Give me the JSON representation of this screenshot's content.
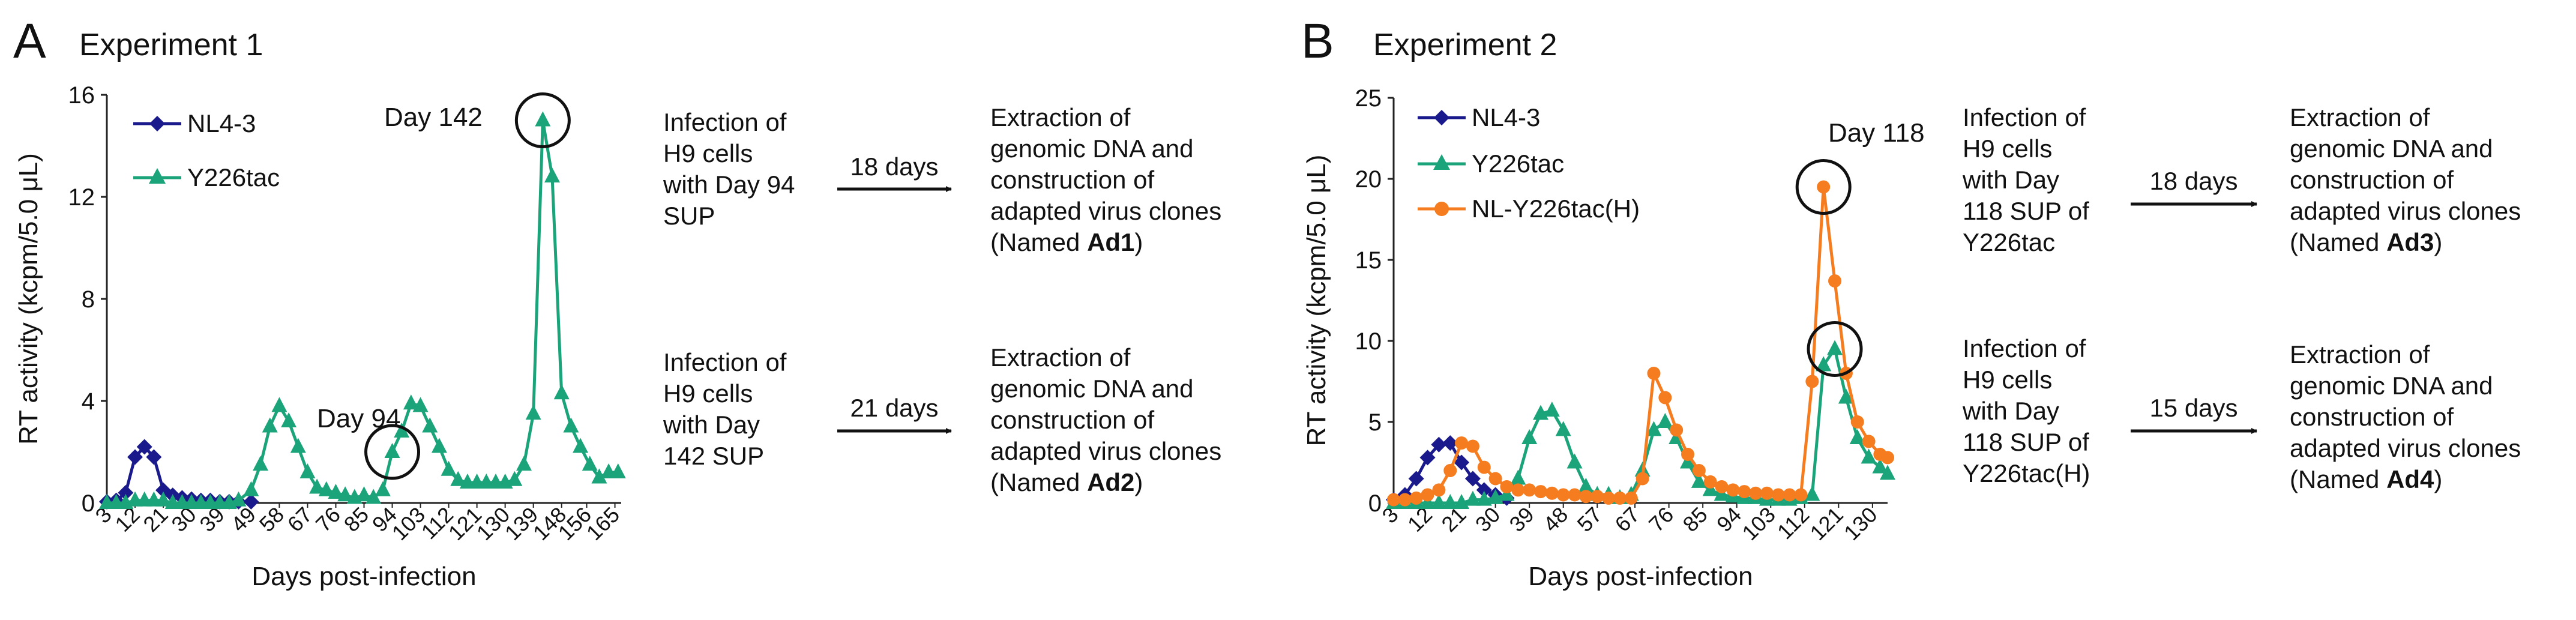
{
  "panels": [
    {
      "letter": "A",
      "title": "Experiment 1",
      "xlabel": "Days post-infection",
      "ylabel": "RT activity (kcpm/5.0 μL)",
      "ylim": [
        0,
        16
      ],
      "yticks": [
        "0",
        "4",
        "8",
        "12",
        "16"
      ],
      "xticklabels": [
        "3",
        "12",
        "21",
        "30",
        "39",
        "49",
        "58",
        "67",
        "76",
        "85",
        "94",
        "103",
        "112",
        "121",
        "130",
        "139",
        "148",
        "156",
        "165"
      ],
      "annotations": [
        {
          "text": "Day 94",
          "day": 94
        },
        {
          "text": "Day 142",
          "day": 142
        }
      ],
      "flow": [
        {
          "infection": [
            "Infection of",
            "H9 cells",
            "with Day 94",
            "SUP"
          ],
          "arrow_label": "18 days",
          "result": [
            "Extraction of",
            "genomic DNA and",
            "construction of",
            "adapted virus clones"
          ],
          "named_prefix": "(Named ",
          "named_clone": "Ad1",
          "named_suffix": ")"
        },
        {
          "infection": [
            "Infection of",
            "H9 cells",
            "with Day",
            "142 SUP"
          ],
          "arrow_label": "21 days",
          "result": [
            "Extraction of",
            "genomic DNA and",
            "construction of",
            "adapted virus clones"
          ],
          "named_prefix": "(Named ",
          "named_clone": "Ad2",
          "named_suffix": ")"
        }
      ]
    },
    {
      "letter": "B",
      "title": "Experiment 2",
      "xlabel": "Days post-infection",
      "ylabel": "RT activity (kcpm/5.0 μL)",
      "ylim": [
        0,
        25
      ],
      "yticks": [
        "0",
        "5",
        "10",
        "15",
        "20",
        "25"
      ],
      "xticklabels": [
        "3",
        "12",
        "21",
        "30",
        "39",
        "48",
        "57",
        "67",
        "76",
        "85",
        "94",
        "103",
        "112",
        "121",
        "130"
      ],
      "annotations": [
        {
          "text": "Day 118",
          "day": 118
        }
      ],
      "flow": [
        {
          "infection": [
            "Infection of",
            "H9 cells",
            "with Day",
            "118 SUP of",
            "Y226tac"
          ],
          "arrow_label": "18 days",
          "result": [
            "Extraction of",
            "genomic DNA and",
            "construction of",
            "adapted virus clones"
          ],
          "named_prefix": "(Named ",
          "named_clone": "Ad3",
          "named_suffix": ")"
        },
        {
          "infection": [
            "Infection of",
            "H9 cells",
            "with Day",
            "118 SUP of",
            "Y226tac(H)"
          ],
          "arrow_label": "15 days",
          "result": [
            "Extraction of",
            "genomic DNA and",
            "construction of",
            "adapted virus clones"
          ],
          "named_prefix": "(Named ",
          "named_clone": "Ad4",
          "named_suffix": ")"
        }
      ]
    }
  ],
  "colors": {
    "nl43": "#1a1a8c",
    "y226tac": "#1ba37a",
    "nly226tach": "#f57c1f",
    "axis": "#222222"
  },
  "chart_data": [
    {
      "type": "line",
      "title": "Experiment 1",
      "xlabel": "Days post-infection",
      "ylabel": "RT activity (kcpm/5.0 μL)",
      "xlim": [
        3,
        167
      ],
      "ylim": [
        0,
        16
      ],
      "legend_position": "top-left",
      "series": [
        {
          "name": "NL4-3",
          "key": "nl43",
          "marker": "diamond",
          "x": [
            3,
            6,
            9,
            12,
            15,
            18,
            21,
            24,
            27,
            30,
            33,
            36,
            39,
            42,
            45,
            49
          ],
          "y": [
            0.05,
            0.1,
            0.4,
            1.8,
            2.2,
            1.8,
            0.5,
            0.3,
            0.2,
            0.15,
            0.1,
            0.1,
            0.05,
            0.05,
            0.05,
            0.05
          ]
        },
        {
          "name": "Y226tac",
          "key": "y226tac",
          "marker": "triangle",
          "x": [
            3,
            6,
            9,
            12,
            15,
            18,
            21,
            24,
            27,
            30,
            33,
            36,
            39,
            42,
            45,
            49,
            52,
            55,
            58,
            61,
            64,
            67,
            70,
            73,
            76,
            79,
            82,
            85,
            88,
            91,
            94,
            97,
            100,
            103,
            106,
            109,
            112,
            115,
            118,
            121,
            124,
            127,
            130,
            133,
            136,
            139,
            142,
            145,
            148,
            151,
            154,
            157,
            160,
            163,
            166
          ],
          "y": [
            0,
            0,
            0,
            0.1,
            0.1,
            0.1,
            0.1,
            0,
            0,
            0,
            0,
            0,
            0,
            0,
            0.1,
            0.5,
            1.5,
            3.0,
            3.8,
            3.2,
            2.2,
            1.2,
            0.6,
            0.5,
            0.4,
            0.3,
            0.2,
            0.3,
            0.2,
            0.5,
            2.0,
            2.8,
            3.9,
            3.8,
            3.0,
            2.2,
            1.3,
            0.9,
            0.8,
            0.8,
            0.8,
            0.8,
            0.8,
            0.9,
            1.5,
            3.5,
            15.0,
            12.8,
            4.3,
            3.0,
            2.2,
            1.5,
            1.0,
            1.2,
            1.2
          ]
        }
      ]
    },
    {
      "type": "line",
      "title": "Experiment 2",
      "xlabel": "Days post-infection",
      "ylabel": "RT activity (kcpm/5.0 μL)",
      "xlim": [
        3,
        134
      ],
      "ylim": [
        0,
        25
      ],
      "legend_position": "top-left",
      "series": [
        {
          "name": "NL4-3",
          "key": "nl43",
          "marker": "diamond",
          "x": [
            3,
            6,
            9,
            12,
            15,
            18,
            21,
            24,
            27,
            30,
            33
          ],
          "y": [
            0.2,
            0.5,
            1.5,
            2.8,
            3.6,
            3.7,
            2.5,
            1.5,
            0.8,
            0.5,
            0.3
          ]
        },
        {
          "name": "Y226tac",
          "key": "y226tac",
          "marker": "triangle",
          "x": [
            3,
            6,
            9,
            12,
            15,
            18,
            21,
            24,
            27,
            30,
            33,
            36,
            39,
            42,
            45,
            48,
            51,
            54,
            57,
            60,
            63,
            66,
            69,
            72,
            75,
            78,
            81,
            84,
            87,
            90,
            93,
            96,
            99,
            102,
            105,
            108,
            111,
            114,
            117,
            120,
            123,
            126,
            129,
            132,
            134
          ],
          "y": [
            0,
            0,
            0,
            0,
            0,
            0,
            0,
            0.2,
            0.2,
            0.3,
            0.5,
            1.5,
            4.0,
            5.5,
            5.7,
            4.5,
            2.5,
            1.0,
            0.5,
            0.5,
            0.3,
            0.5,
            2.0,
            4.5,
            5.0,
            4.0,
            2.5,
            1.3,
            0.8,
            0.5,
            0.4,
            0.3,
            0.3,
            0.2,
            0.2,
            0.2,
            0.3,
            0.5,
            8.5,
            9.5,
            6.5,
            4.0,
            2.8,
            2.2,
            1.8
          ]
        },
        {
          "name": "NL-Y226tac(H)",
          "key": "nly226tach",
          "marker": "circle",
          "x": [
            3,
            6,
            9,
            12,
            15,
            18,
            21,
            24,
            27,
            30,
            33,
            36,
            39,
            42,
            45,
            48,
            51,
            54,
            57,
            60,
            63,
            66,
            69,
            72,
            75,
            78,
            81,
            84,
            87,
            90,
            93,
            96,
            99,
            102,
            105,
            108,
            111,
            114,
            117,
            120,
            123,
            126,
            129,
            132,
            134
          ],
          "y": [
            0.2,
            0.2,
            0.3,
            0.5,
            0.8,
            2.0,
            3.7,
            3.5,
            2.2,
            1.5,
            1.0,
            0.8,
            0.8,
            0.7,
            0.6,
            0.5,
            0.5,
            0.4,
            0.4,
            0.3,
            0.3,
            0.3,
            1.5,
            8.0,
            6.5,
            4.5,
            3.0,
            2.0,
            1.3,
            1.0,
            0.8,
            0.7,
            0.6,
            0.6,
            0.5,
            0.5,
            0.5,
            7.5,
            19.5,
            13.7,
            8.0,
            5.0,
            3.8,
            3.0,
            2.8
          ]
        }
      ]
    }
  ]
}
